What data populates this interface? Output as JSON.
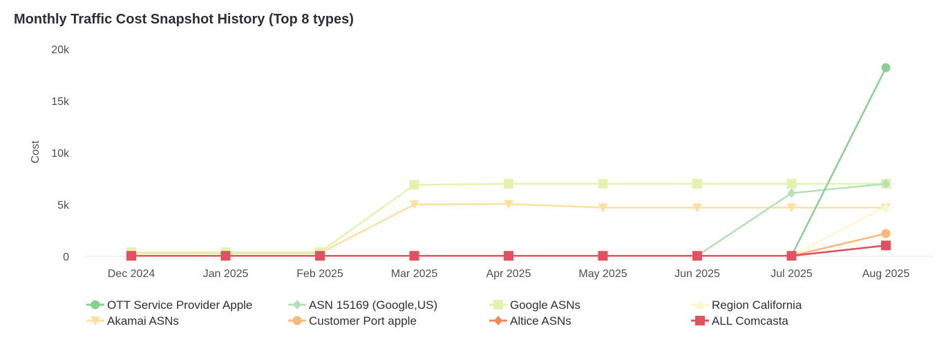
{
  "chart_data": {
    "type": "line",
    "title": "Monthly Traffic Cost Snapshot History (Top 8 types)",
    "xlabel": "",
    "ylabel": "Cost",
    "ylim": [
      0,
      20000
    ],
    "y_ticks": [
      {
        "value": 0,
        "label": "0"
      },
      {
        "value": 5000,
        "label": "5k"
      },
      {
        "value": 10000,
        "label": "10k"
      },
      {
        "value": 15000,
        "label": "15k"
      },
      {
        "value": 20000,
        "label": "20k"
      }
    ],
    "categories": [
      "Dec 2024",
      "Jan 2025",
      "Feb 2025",
      "Mar 2025",
      "Apr 2025",
      "May 2025",
      "Jun 2025",
      "Jul 2025",
      "Aug 2025"
    ],
    "series": [
      {
        "name": "Akamai ASNs",
        "color": "#fbe0a0",
        "marker": "triangle-down",
        "values": [
          300,
          300,
          300,
          5000,
          5050,
          4700,
          4700,
          4700,
          4700
        ]
      },
      {
        "name": "Google ASNs",
        "color": "#e3f3ae",
        "marker": "square",
        "values": [
          400,
          400,
          400,
          6900,
          7000,
          7000,
          7000,
          7000,
          7000
        ]
      },
      {
        "name": "Region California",
        "color": "#fdf8cc",
        "marker": "triangle-up",
        "values": [
          50,
          50,
          50,
          50,
          50,
          50,
          50,
          50,
          4800
        ]
      },
      {
        "name": "ASN 15169 (Google,US)",
        "color": "#b4e0b4",
        "marker": "diamond",
        "values": [
          50,
          50,
          50,
          50,
          50,
          50,
          50,
          6100,
          7000
        ]
      },
      {
        "name": "Customer Port apple",
        "color": "#f9b878",
        "marker": "circle",
        "values": [
          50,
          50,
          50,
          50,
          50,
          50,
          50,
          50,
          2200
        ]
      },
      {
        "name": "Altice ASNs",
        "color": "#f3875a",
        "marker": "diamond",
        "values": [
          50,
          50,
          50,
          50,
          50,
          50,
          50,
          50,
          1050
        ]
      },
      {
        "name": "OTT Service Provider Apple",
        "color": "#88cf92",
        "marker": "circle",
        "values": [
          50,
          50,
          50,
          50,
          50,
          50,
          50,
          50,
          18200
        ]
      },
      {
        "name": "ALL Comcasta",
        "color": "#e2515f",
        "marker": "square",
        "values": [
          50,
          50,
          50,
          50,
          50,
          50,
          50,
          50,
          1050
        ]
      }
    ],
    "legend": {
      "placement": "bottom-left",
      "entries": [
        "OTT Service Provider Apple",
        "ASN 15169 (Google,US)",
        "Google ASNs",
        "Region California",
        "Akamai ASNs",
        "Customer Port apple",
        "Altice ASNs",
        "ALL Comcasta"
      ]
    },
    "grid": false
  }
}
